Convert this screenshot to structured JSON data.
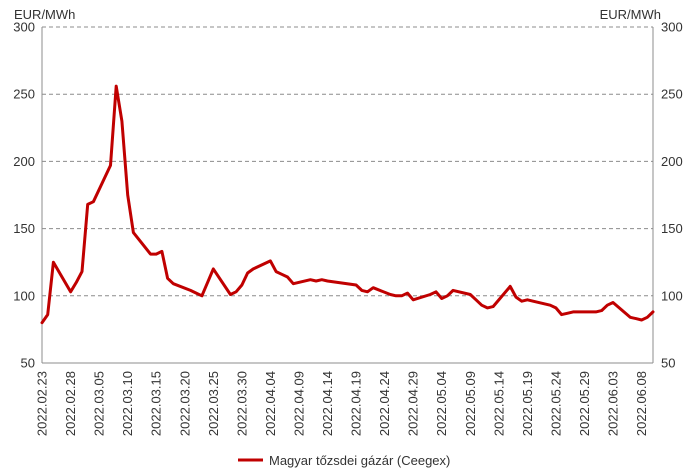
{
  "chart_data": {
    "type": "line",
    "y_unit_left": "EUR/MWh",
    "y_unit_right": "EUR/MWh",
    "ylim": [
      50,
      300
    ],
    "yticks": [
      50,
      100,
      150,
      200,
      250,
      300
    ],
    "grid": "horizontal",
    "legend_placement": "bottom",
    "xlim": [
      "2022.02.23",
      "2022.06.10"
    ],
    "xtick_labels": [
      "2022.02.23",
      "2022.02.28",
      "2022.03.05",
      "2022.03.10",
      "2022.03.15",
      "2022.03.20",
      "2022.03.25",
      "2022.03.30",
      "2022.04.04",
      "2022.04.09",
      "2022.04.14",
      "2022.04.19",
      "2022.04.24",
      "2022.04.29",
      "2022.05.04",
      "2022.05.09",
      "2022.05.14",
      "2022.05.19",
      "2022.05.24",
      "2022.05.29",
      "2022.06.03",
      "2022.06.08"
    ],
    "series": [
      {
        "name": "Magyar tőzsdei gázár (Ceegex)",
        "color": "#c00000",
        "x": [
          "2022.02.23",
          "2022.02.24",
          "2022.02.25",
          "2022.02.28",
          "2022.03.01",
          "2022.03.02",
          "2022.03.03",
          "2022.03.04",
          "2022.03.07",
          "2022.03.08",
          "2022.03.09",
          "2022.03.10",
          "2022.03.11",
          "2022.03.14",
          "2022.03.15",
          "2022.03.16",
          "2022.03.17",
          "2022.03.18",
          "2022.03.21",
          "2022.03.22",
          "2022.03.23",
          "2022.03.24",
          "2022.03.25",
          "2022.03.28",
          "2022.03.29",
          "2022.03.30",
          "2022.03.31",
          "2022.04.01",
          "2022.04.04",
          "2022.04.05",
          "2022.04.06",
          "2022.04.07",
          "2022.04.08",
          "2022.04.11",
          "2022.04.12",
          "2022.04.13",
          "2022.04.14",
          "2022.04.19",
          "2022.04.20",
          "2022.04.21",
          "2022.04.22",
          "2022.04.25",
          "2022.04.26",
          "2022.04.27",
          "2022.04.28",
          "2022.04.29",
          "2022.05.02",
          "2022.05.03",
          "2022.05.04",
          "2022.05.05",
          "2022.05.06",
          "2022.05.09",
          "2022.05.10",
          "2022.05.11",
          "2022.05.12",
          "2022.05.13",
          "2022.05.16",
          "2022.05.17",
          "2022.05.18",
          "2022.05.19",
          "2022.05.20",
          "2022.05.23",
          "2022.05.24",
          "2022.05.25",
          "2022.05.26",
          "2022.05.27",
          "2022.05.30",
          "2022.05.31",
          "2022.06.01",
          "2022.06.02",
          "2022.06.03",
          "2022.06.06",
          "2022.06.07",
          "2022.06.08",
          "2022.06.09",
          "2022.06.10"
        ],
        "values": [
          80,
          86,
          125,
          103,
          110,
          118,
          168,
          170,
          197,
          256,
          230,
          175,
          147,
          131,
          131,
          133,
          113,
          109,
          104,
          102,
          100,
          110,
          120,
          101,
          103,
          108,
          117,
          120,
          126,
          118,
          116,
          114,
          109,
          112,
          111,
          112,
          111,
          108,
          104,
          103,
          106,
          101,
          100,
          100,
          102,
          97,
          101,
          103,
          98,
          100,
          104,
          101,
          97,
          93,
          91,
          92,
          107,
          99,
          96,
          97,
          96,
          93,
          91,
          86,
          87,
          88,
          88,
          88,
          89,
          93,
          95,
          84,
          83,
          82,
          84,
          88
        ]
      }
    ]
  }
}
